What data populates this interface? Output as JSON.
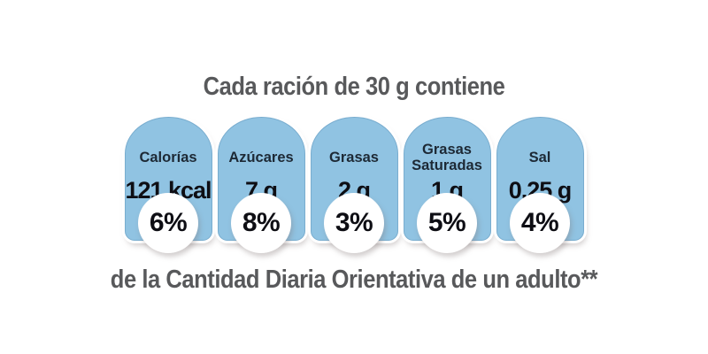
{
  "label": {
    "title": "Cada ración de 30 g contiene",
    "footer": "de la Cantidad Diaria Orientativa de un adulto**"
  },
  "badges": [
    {
      "name": "Calorías",
      "value": "121 kcal",
      "percent": "6%"
    },
    {
      "name": "Azúcares",
      "value": "7 g",
      "percent": "8%"
    },
    {
      "name": "Grasas",
      "value": "2 g",
      "percent": "3%"
    },
    {
      "name": "Grasas Saturadas",
      "value": "1 g",
      "percent": "5%"
    },
    {
      "name": "Sal",
      "value": "0,25 g",
      "percent": "4%"
    }
  ],
  "colors": {
    "badge_blue": "#90C3E2",
    "badge_edge_blue": "#79ADCF",
    "label_navy": "#1D2935",
    "value_black": "#0E0E14",
    "heading_gray": "#58595B",
    "circle_white": "#FFFFFF",
    "background": "#FFFFFF"
  }
}
